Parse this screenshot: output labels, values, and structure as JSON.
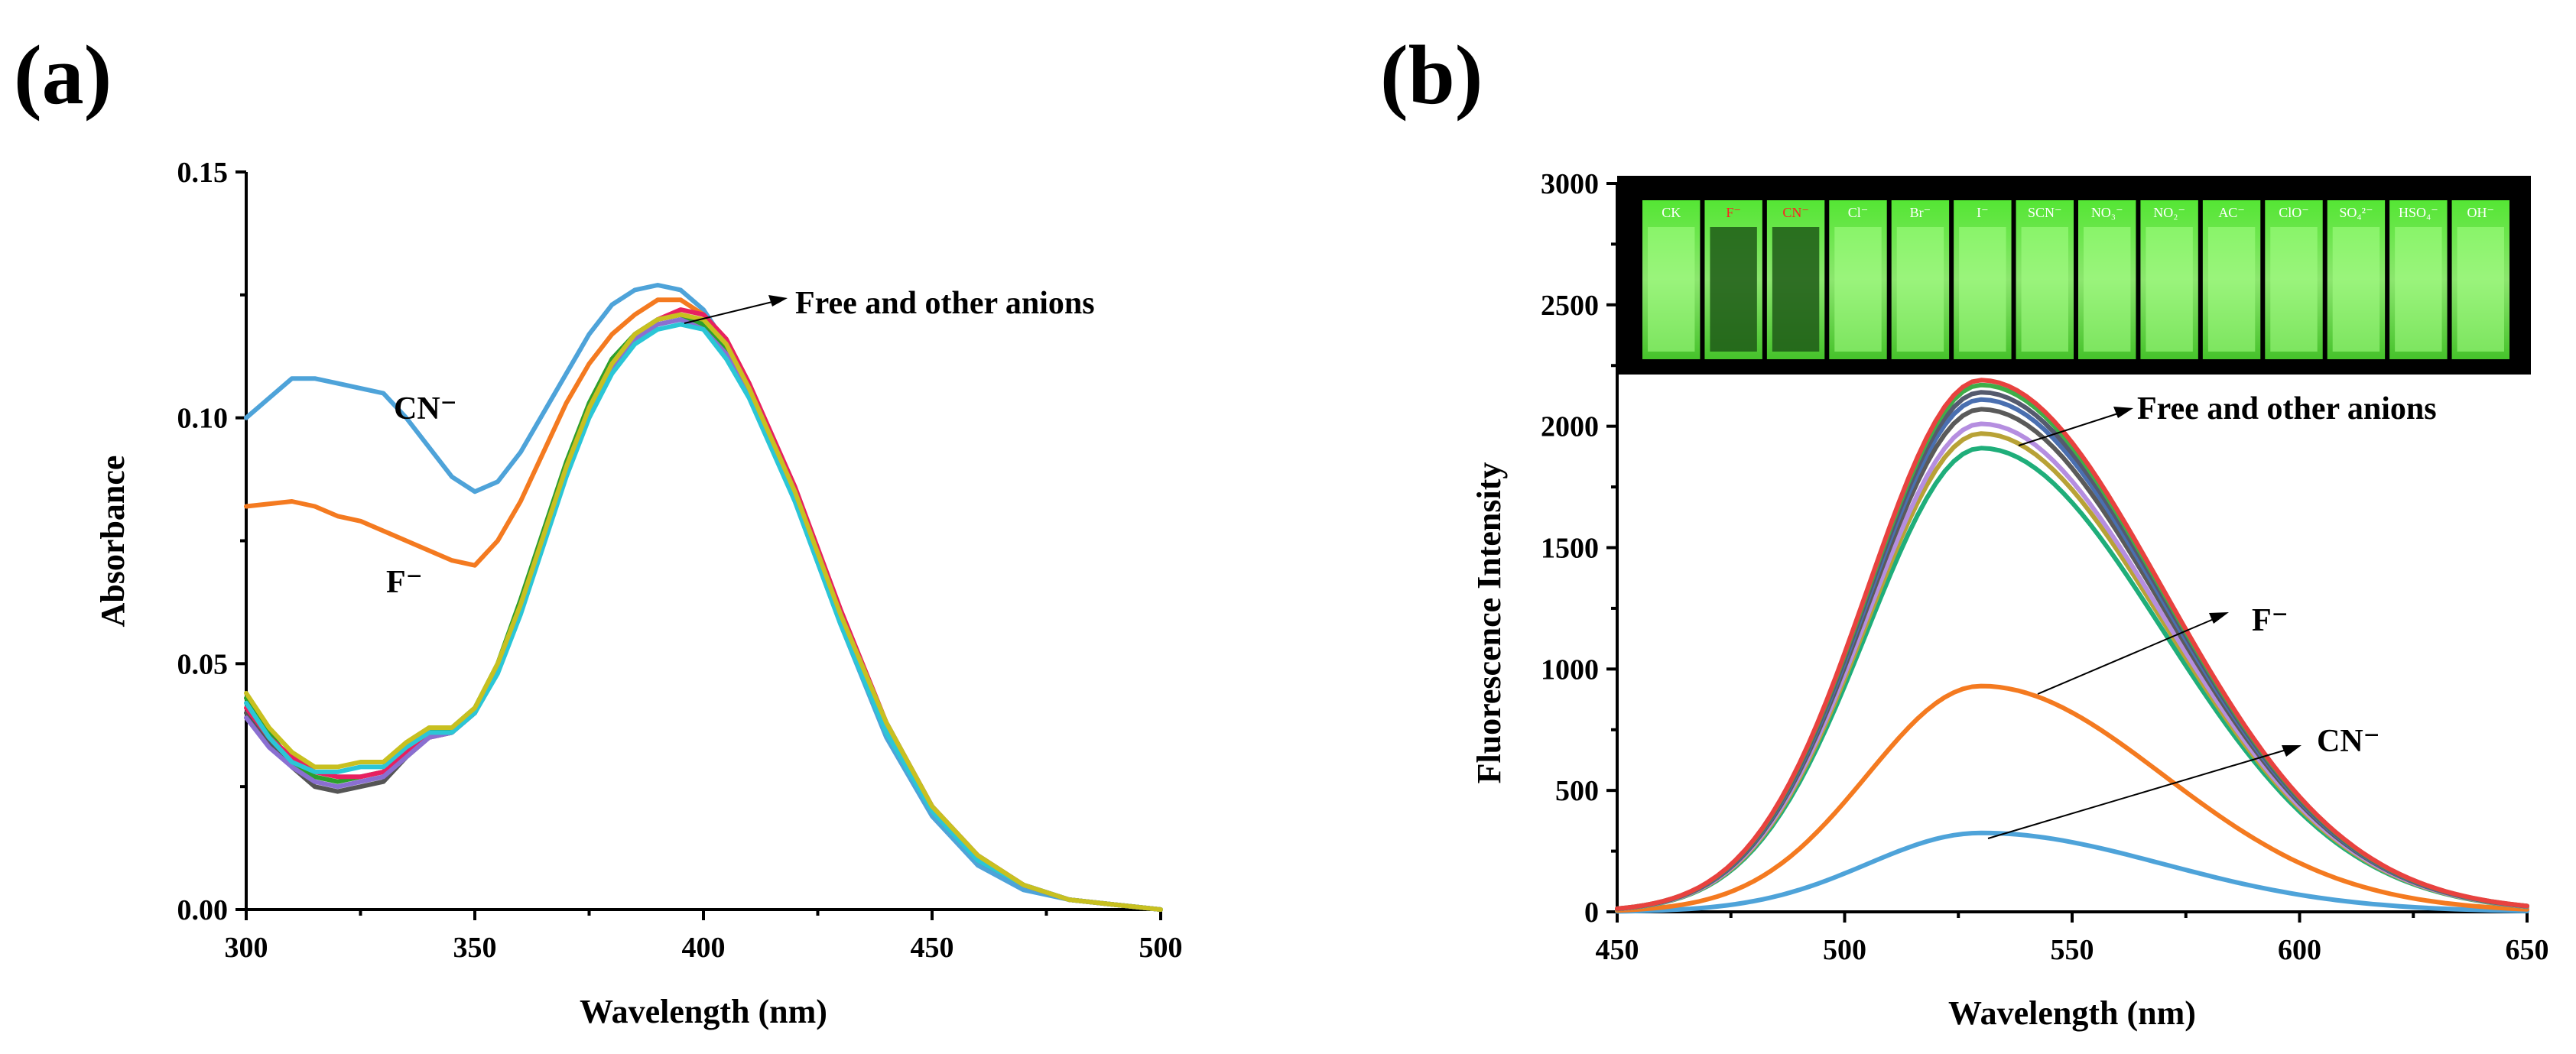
{
  "chart_data": [
    {
      "panel": "(a)",
      "type": "line",
      "xlabel": "Wavelength (nm)",
      "ylabel": "Absorbance",
      "xlim": [
        300,
        500
      ],
      "ylim": [
        0,
        0.15
      ],
      "xticks": [
        300,
        350,
        400,
        450,
        500
      ],
      "yticks": [
        0.0,
        0.05,
        0.1,
        0.15
      ],
      "xtick_labels": [
        "300",
        "350",
        "400",
        "450",
        "500"
      ],
      "ytick_labels": [
        "0.00",
        "0.05",
        "0.10",
        "0.15"
      ],
      "annotations": {
        "free": "Free and other anions",
        "cn": "CN⁻",
        "f": "F⁻"
      },
      "series": [
        {
          "name": "CN⁻",
          "color": "#4ea3d9",
          "x": [
            300,
            305,
            310,
            315,
            320,
            325,
            330,
            335,
            340,
            345,
            350,
            355,
            360,
            365,
            370,
            375,
            380,
            385,
            390,
            395,
            400,
            405,
            410,
            420,
            430,
            440,
            450,
            460,
            470,
            480,
            490,
            500
          ],
          "y": [
            0.1,
            0.104,
            0.108,
            0.108,
            0.107,
            0.106,
            0.105,
            0.1,
            0.094,
            0.088,
            0.085,
            0.087,
            0.093,
            0.101,
            0.109,
            0.117,
            0.123,
            0.126,
            0.127,
            0.126,
            0.122,
            0.115,
            0.105,
            0.083,
            0.058,
            0.035,
            0.019,
            0.009,
            0.004,
            0.002,
            0.001,
            0.0
          ]
        },
        {
          "name": "F⁻",
          "color": "#f47a20",
          "x": [
            300,
            310,
            315,
            320,
            325,
            330,
            335,
            340,
            345,
            350,
            355,
            360,
            365,
            370,
            375,
            380,
            385,
            390,
            395,
            400,
            405,
            410,
            420,
            430,
            440,
            450,
            460,
            470,
            480,
            490,
            500
          ],
          "y": [
            0.082,
            0.083,
            0.082,
            0.08,
            0.079,
            0.077,
            0.075,
            0.073,
            0.071,
            0.07,
            0.075,
            0.083,
            0.093,
            0.103,
            0.111,
            0.117,
            0.121,
            0.124,
            0.124,
            0.121,
            0.116,
            0.107,
            0.085,
            0.06,
            0.037,
            0.02,
            0.01,
            0.005,
            0.002,
            0.001,
            0.0
          ]
        },
        {
          "name": "Free",
          "color": "#555555",
          "x": [
            300,
            305,
            310,
            315,
            320,
            325,
            330,
            335,
            340,
            345,
            350,
            355,
            360,
            365,
            370,
            375,
            380,
            385,
            390,
            395,
            400,
            405,
            410,
            420,
            430,
            440,
            450,
            460,
            470,
            480,
            490,
            500
          ],
          "y": [
            0.04,
            0.034,
            0.029,
            0.025,
            0.024,
            0.025,
            0.026,
            0.031,
            0.035,
            0.036,
            0.04,
            0.049,
            0.062,
            0.076,
            0.09,
            0.102,
            0.111,
            0.117,
            0.12,
            0.121,
            0.119,
            0.113,
            0.105,
            0.084,
            0.059,
            0.037,
            0.021,
            0.01,
            0.005,
            0.002,
            0.001,
            0.0
          ]
        },
        {
          "name": "Cl⁻",
          "color": "#2ca02c",
          "x": [
            300,
            305,
            310,
            315,
            320,
            325,
            330,
            335,
            340,
            345,
            350,
            355,
            360,
            365,
            370,
            375,
            380,
            385,
            390,
            395,
            400,
            405,
            410,
            420,
            430,
            440,
            450,
            460,
            470,
            480,
            490,
            500
          ],
          "y": [
            0.043,
            0.036,
            0.03,
            0.027,
            0.026,
            0.027,
            0.028,
            0.033,
            0.036,
            0.037,
            0.041,
            0.05,
            0.063,
            0.077,
            0.091,
            0.103,
            0.112,
            0.117,
            0.12,
            0.121,
            0.119,
            0.114,
            0.106,
            0.085,
            0.06,
            0.038,
            0.021,
            0.011,
            0.005,
            0.002,
            0.001,
            0.0
          ]
        },
        {
          "name": "Br⁻",
          "color": "#e82060",
          "x": [
            300,
            305,
            310,
            315,
            320,
            325,
            330,
            335,
            340,
            345,
            350,
            355,
            360,
            365,
            370,
            375,
            380,
            385,
            390,
            395,
            400,
            405,
            410,
            420,
            430,
            440,
            450,
            460,
            470,
            480,
            490,
            500
          ],
          "y": [
            0.041,
            0.035,
            0.031,
            0.028,
            0.027,
            0.027,
            0.028,
            0.032,
            0.035,
            0.036,
            0.04,
            0.049,
            0.062,
            0.076,
            0.09,
            0.102,
            0.111,
            0.116,
            0.12,
            0.122,
            0.121,
            0.116,
            0.107,
            0.086,
            0.061,
            0.038,
            0.021,
            0.011,
            0.005,
            0.002,
            0.001,
            0.0
          ]
        },
        {
          "name": "I⁻",
          "color": "#8a6fd1",
          "x": [
            300,
            305,
            310,
            315,
            320,
            325,
            330,
            335,
            340,
            345,
            350,
            355,
            360,
            365,
            370,
            375,
            380,
            385,
            390,
            395,
            400,
            405,
            410,
            420,
            430,
            440,
            450,
            460,
            470,
            480,
            490,
            500
          ],
          "y": [
            0.039,
            0.033,
            0.029,
            0.026,
            0.025,
            0.026,
            0.027,
            0.031,
            0.035,
            0.036,
            0.04,
            0.049,
            0.061,
            0.075,
            0.089,
            0.101,
            0.11,
            0.116,
            0.119,
            0.12,
            0.118,
            0.113,
            0.105,
            0.084,
            0.059,
            0.037,
            0.02,
            0.01,
            0.005,
            0.002,
            0.001,
            0.0
          ]
        },
        {
          "name": "SCN⁻",
          "color": "#2bc6d6",
          "x": [
            300,
            305,
            310,
            315,
            320,
            325,
            330,
            335,
            340,
            345,
            350,
            355,
            360,
            365,
            370,
            375,
            380,
            385,
            390,
            395,
            400,
            405,
            410,
            420,
            430,
            440,
            450,
            460,
            470,
            480,
            490,
            500
          ],
          "y": [
            0.042,
            0.035,
            0.03,
            0.028,
            0.028,
            0.029,
            0.029,
            0.033,
            0.036,
            0.036,
            0.04,
            0.048,
            0.06,
            0.074,
            0.088,
            0.1,
            0.109,
            0.115,
            0.118,
            0.119,
            0.118,
            0.112,
            0.104,
            0.083,
            0.058,
            0.036,
            0.02,
            0.01,
            0.005,
            0.002,
            0.001,
            0.0
          ]
        },
        {
          "name": "OH⁻",
          "color": "#c8c020",
          "x": [
            300,
            305,
            310,
            315,
            320,
            325,
            330,
            335,
            340,
            345,
            350,
            355,
            360,
            365,
            370,
            375,
            380,
            385,
            390,
            395,
            400,
            405,
            410,
            420,
            430,
            440,
            450,
            460,
            470,
            480,
            490,
            500
          ],
          "y": [
            0.044,
            0.037,
            0.032,
            0.029,
            0.029,
            0.03,
            0.03,
            0.034,
            0.037,
            0.037,
            0.041,
            0.05,
            0.062,
            0.076,
            0.09,
            0.102,
            0.111,
            0.117,
            0.12,
            0.121,
            0.12,
            0.115,
            0.106,
            0.085,
            0.06,
            0.038,
            0.021,
            0.011,
            0.005,
            0.002,
            0.001,
            0.0
          ]
        }
      ]
    },
    {
      "panel": "(b)",
      "type": "line",
      "xlabel": "Wavelength (nm)",
      "ylabel": "Fluorescence Intensity",
      "xlim": [
        450,
        650
      ],
      "ylim": [
        0,
        3000
      ],
      "xticks": [
        450,
        500,
        550,
        600,
        650
      ],
      "yticks": [
        0,
        500,
        1000,
        1500,
        2000,
        2500,
        3000
      ],
      "xtick_labels": [
        "450",
        "500",
        "550",
        "600",
        "650"
      ],
      "ytick_labels": [
        "0",
        "500",
        "1000",
        "1500",
        "2000",
        "2500",
        "3000"
      ],
      "annotations": {
        "free": "Free and other anions",
        "f": "F⁻",
        "cn": "CN⁻"
      },
      "peak_wavelength": 530,
      "series": [
        {
          "name": "Free",
          "color": "#e8423f",
          "peak": 2190
        },
        {
          "name": "Cl⁻",
          "color": "#3fae49",
          "peak": 2170
        },
        {
          "name": "Br⁻",
          "color": "#555a6e",
          "peak": 2140
        },
        {
          "name": "I⁻",
          "color": "#4a6fb0",
          "peak": 2110
        },
        {
          "name": "SCN⁻",
          "color": "#5a5a5a",
          "peak": 2070
        },
        {
          "name": "NO₃⁻",
          "color": "#b58ee0",
          "peak": 2010
        },
        {
          "name": "ClO⁻",
          "color": "#b8a236",
          "peak": 1970
        },
        {
          "name": "OH⁻",
          "color": "#1fae7a",
          "peak": 1910
        },
        {
          "name": "F⁻",
          "color": "#f47a20",
          "peak": 930
        },
        {
          "name": "CN⁻",
          "color": "#4ea3d9",
          "peak": 325
        }
      ],
      "inset": {
        "description_labels": [
          "CK",
          "F⁻",
          "CN⁻",
          "Cl⁻",
          "Br⁻",
          "I⁻",
          "SCN⁻",
          "NO₃⁻",
          "NO₂⁻",
          "AC⁻",
          "ClO⁻",
          "SO₄²⁻",
          "HSO₄⁻",
          "OH⁻"
        ],
        "highlight": [
          "F⁻",
          "CN⁻"
        ],
        "background": "#000000",
        "glow_color": "#8dff6a"
      }
    }
  ]
}
